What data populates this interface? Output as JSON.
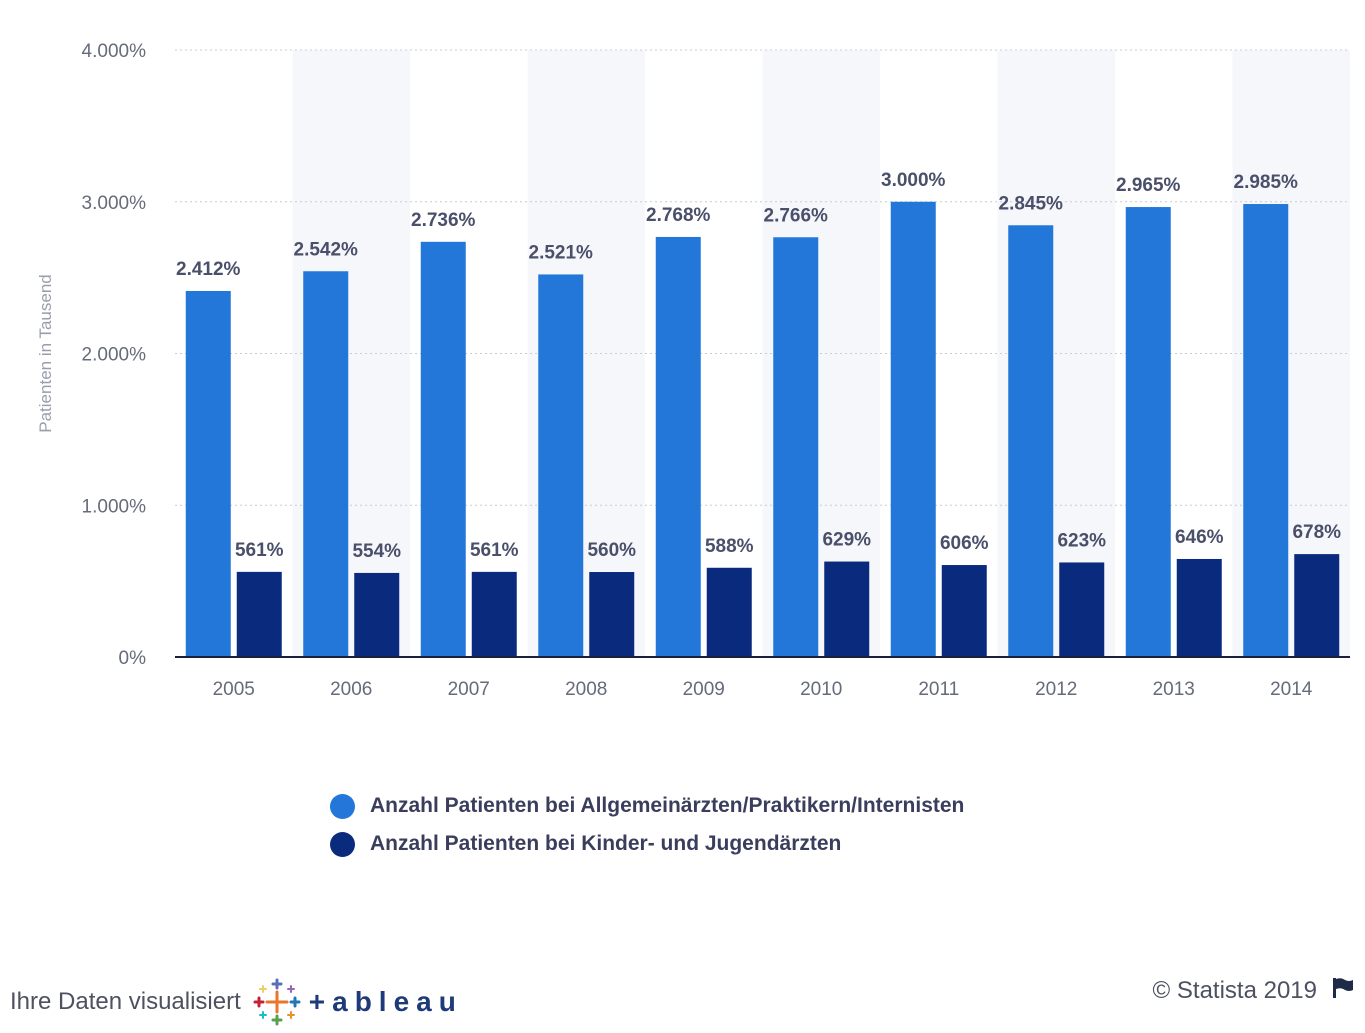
{
  "chart_data": {
    "type": "bar",
    "categories": [
      "2005",
      "2006",
      "2007",
      "2008",
      "2009",
      "2010",
      "2011",
      "2012",
      "2013",
      "2014"
    ],
    "series": [
      {
        "name": "Anzahl Patienten bei Allgemeinärzten/Praktikern/Internisten",
        "color": "#2277d8",
        "values": [
          2412,
          2542,
          2736,
          2521,
          2768,
          2766,
          3000,
          2845,
          2965,
          2985
        ],
        "labels": [
          "2.412%",
          "2.542%",
          "2.736%",
          "2.521%",
          "2.768%",
          "2.766%",
          "3.000%",
          "2.845%",
          "2.965%",
          "2.985%"
        ]
      },
      {
        "name": "Anzahl Patienten bei Kinder- und Jugendärzten",
        "color": "#0a2a7e",
        "values": [
          561,
          554,
          561,
          560,
          588,
          629,
          606,
          623,
          646,
          678
        ],
        "labels": [
          "561%",
          "554%",
          "561%",
          "560%",
          "588%",
          "629%",
          "606%",
          "623%",
          "646%",
          "678%"
        ]
      }
    ],
    "ylabel": "Patienten in Tausend",
    "ylim": [
      0,
      4000
    ],
    "yticks": [
      0,
      1000,
      2000,
      3000,
      4000
    ],
    "ytick_labels": [
      "0%",
      "1.000%",
      "2.000%",
      "3.000%",
      "4.000%"
    ],
    "grid": true,
    "legend_position": "bottom-center"
  },
  "footer": {
    "visualized_text": "Ihre Daten visualisiert",
    "tableau_word": "+ableau",
    "copyright": "© Statista 2019"
  },
  "icons": {
    "tableau_logo": "tableau-logo-icon",
    "flag": "flag-icon"
  }
}
